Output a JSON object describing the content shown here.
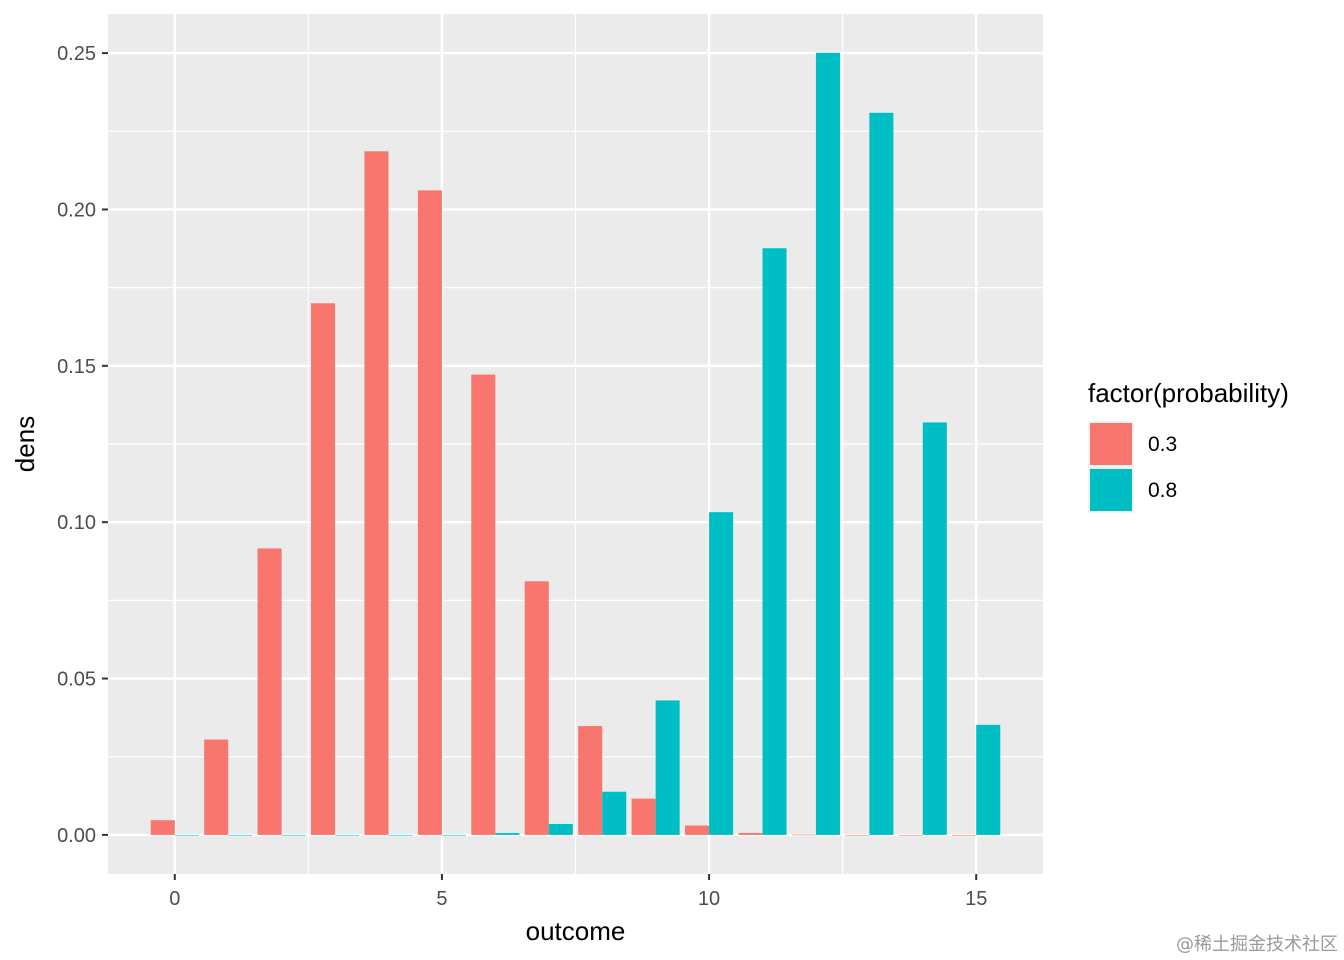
{
  "chart_data": {
    "type": "bar",
    "xlabel": "outcome",
    "ylabel": "dens",
    "xlim": [
      -1.25,
      16.25
    ],
    "ylim": [
      -0.0125,
      0.2625
    ],
    "x_ticks": [
      0,
      5,
      10,
      15
    ],
    "y_ticks": [
      0.0,
      0.05,
      0.1,
      0.15,
      0.2,
      0.25
    ],
    "y_tick_labels": [
      "0.00",
      "0.05",
      "0.10",
      "0.15",
      "0.20",
      "0.25"
    ],
    "x_tick_labels": [
      "0",
      "5",
      "10",
      "15"
    ],
    "grid": true,
    "legend": {
      "title": "factor(probability)",
      "position": "right"
    },
    "series": [
      {
        "name": "0.3",
        "color": "#F8766D",
        "x": [
          0,
          1,
          2,
          3,
          4,
          5,
          6,
          7,
          8,
          9,
          10,
          11,
          12,
          13,
          14,
          15
        ],
        "values": [
          0.0047,
          0.0305,
          0.0916,
          0.17,
          0.2186,
          0.2061,
          0.1472,
          0.0811,
          0.0348,
          0.0116,
          0.003,
          0.0006,
          0.0001,
          0.0,
          0.0,
          0.0
        ]
      },
      {
        "name": "0.8",
        "color": "#00BFC4",
        "x": [
          0,
          1,
          2,
          3,
          4,
          5,
          6,
          7,
          8,
          9,
          10,
          11,
          12,
          13,
          14,
          15
        ],
        "values": [
          0.0,
          0.0,
          0.0,
          0.0,
          0.0,
          0.0,
          0.0006,
          0.0035,
          0.0138,
          0.043,
          0.1032,
          0.1876,
          0.2501,
          0.2309,
          0.1319,
          0.0352
        ]
      }
    ]
  },
  "watermark": "@稀土掘金技术社区"
}
